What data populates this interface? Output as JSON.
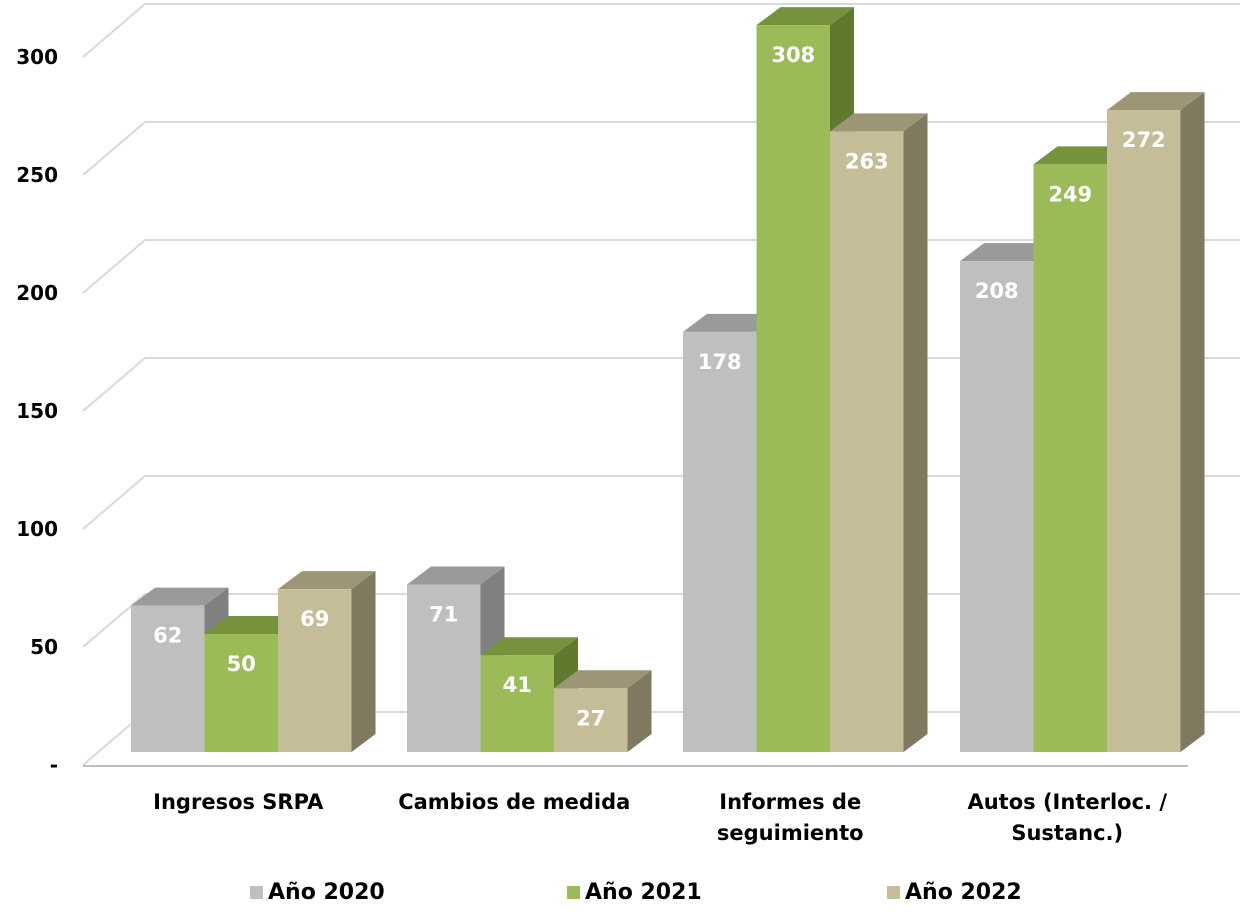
{
  "chart_data": {
    "type": "bar",
    "three_d": true,
    "categories": [
      [
        "Ingresos SRPA"
      ],
      [
        "Cambios de medida"
      ],
      [
        "Informes de",
        "seguimiento"
      ],
      [
        "Autos (Interloc. /",
        "Sustanc.)"
      ]
    ],
    "series": [
      {
        "name": "Año 2020",
        "values": [
          62,
          71,
          178,
          208
        ],
        "labels": [
          "62",
          "71",
          "178",
          "208"
        ]
      },
      {
        "name": "Año 2021",
        "values": [
          50,
          41,
          308,
          249
        ],
        "labels": [
          "50",
          "41",
          "308",
          "249"
        ]
      },
      {
        "name": "Año 2022",
        "values": [
          69,
          27,
          263,
          272
        ],
        "labels": [
          "69",
          "27",
          "263",
          "272"
        ]
      }
    ],
    "y_ticks": [
      {
        "value": 0,
        "label": "-"
      },
      {
        "value": 50,
        "label": "50"
      },
      {
        "value": 100,
        "label": "100"
      },
      {
        "value": 150,
        "label": "150"
      },
      {
        "value": 200,
        "label": "200"
      },
      {
        "value": 250,
        "label": "250"
      },
      {
        "value": 300,
        "label": "300"
      }
    ],
    "ylim": [
      0,
      320
    ],
    "grid": true,
    "legend_position": "bottom",
    "colors": {
      "series": [
        {
          "front": "#bfbfbf",
          "side": "#808080",
          "top": "#9a9a9a"
        },
        {
          "front": "#9bbb59",
          "side": "#5f7a2e",
          "top": "#76923c"
        },
        {
          "front": "#c4bd97",
          "side": "#7f7a5f",
          "top": "#9c9676"
        }
      ],
      "grid": "#d9d9d9",
      "axis": "#bfbfbf"
    }
  }
}
